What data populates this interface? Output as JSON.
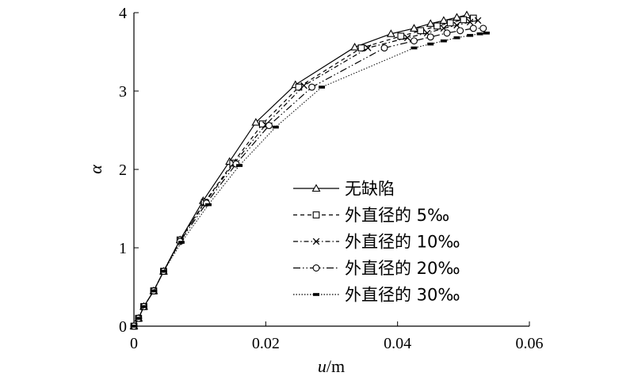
{
  "chart_data": {
    "type": "line",
    "xlabel_var": "u",
    "xlabel_unit": "/m",
    "ylabel": "α",
    "xlim": [
      0,
      0.06
    ],
    "ylim": [
      0,
      4
    ],
    "xticks": [
      0,
      0.02,
      0.04,
      0.06
    ],
    "xtick_labels": [
      "0",
      "0.02",
      "0.04",
      "0.06"
    ],
    "yticks": [
      0,
      1,
      2,
      3,
      4
    ],
    "ytick_labels": [
      "0",
      "1",
      "2",
      "3",
      "4"
    ],
    "grid": false,
    "legend_position": "center-right",
    "series": [
      {
        "name": "无缺陷",
        "dash": "none",
        "marker": "triangle",
        "x": [
          0,
          0.0007,
          0.0015,
          0.003,
          0.0045,
          0.007,
          0.0105,
          0.0145,
          0.0185,
          0.0245,
          0.0335,
          0.039,
          0.0425,
          0.045,
          0.047,
          0.049,
          0.0505
        ],
        "y": [
          0,
          0.1,
          0.25,
          0.45,
          0.7,
          1.1,
          1.6,
          2.1,
          2.6,
          3.08,
          3.56,
          3.73,
          3.8,
          3.86,
          3.9,
          3.94,
          3.97
        ]
      },
      {
        "name": "外直径的 5‰",
        "dash": "5,4",
        "marker": "square",
        "x": [
          0,
          0.0007,
          0.0015,
          0.003,
          0.0045,
          0.007,
          0.0107,
          0.015,
          0.0195,
          0.025,
          0.0345,
          0.0405,
          0.0435,
          0.046,
          0.048,
          0.05,
          0.0515
        ],
        "y": [
          0,
          0.1,
          0.25,
          0.45,
          0.7,
          1.1,
          1.58,
          2.08,
          2.58,
          3.05,
          3.55,
          3.7,
          3.77,
          3.83,
          3.87,
          3.91,
          3.93
        ]
      },
      {
        "name": "外直径的 10‰",
        "dash": "6,3,1.5,3",
        "marker": "cross",
        "x": [
          0,
          0.0007,
          0.0015,
          0.003,
          0.0045,
          0.007,
          0.0108,
          0.0152,
          0.02,
          0.0258,
          0.0355,
          0.0415,
          0.0445,
          0.047,
          0.049,
          0.051,
          0.0522
        ],
        "y": [
          0,
          0.1,
          0.25,
          0.45,
          0.7,
          1.1,
          1.58,
          2.08,
          2.57,
          3.07,
          3.55,
          3.68,
          3.74,
          3.8,
          3.84,
          3.88,
          3.9
        ]
      },
      {
        "name": "外直径的 20‰",
        "dash": "9,3,1.5,3,1.5,3",
        "marker": "circle",
        "x": [
          0,
          0.0007,
          0.0015,
          0.003,
          0.0045,
          0.007,
          0.011,
          0.0155,
          0.0205,
          0.027,
          0.038,
          0.0425,
          0.045,
          0.0475,
          0.0495,
          0.0515,
          0.053
        ],
        "y": [
          0,
          0.1,
          0.25,
          0.45,
          0.7,
          1.08,
          1.57,
          2.07,
          2.56,
          3.05,
          3.55,
          3.64,
          3.69,
          3.74,
          3.77,
          3.8,
          3.8
        ]
      },
      {
        "name": "外直径的 30‰",
        "dash": "1.5,2",
        "marker": "bar",
        "x": [
          0,
          0.0007,
          0.0015,
          0.003,
          0.0045,
          0.0072,
          0.0113,
          0.016,
          0.0215,
          0.0285,
          0.0425,
          0.045,
          0.047,
          0.049,
          0.051,
          0.0525,
          0.0535
        ],
        "y": [
          0,
          0.1,
          0.25,
          0.45,
          0.7,
          1.07,
          1.55,
          2.05,
          2.54,
          3.05,
          3.55,
          3.6,
          3.64,
          3.68,
          3.71,
          3.73,
          3.74
        ]
      }
    ]
  }
}
